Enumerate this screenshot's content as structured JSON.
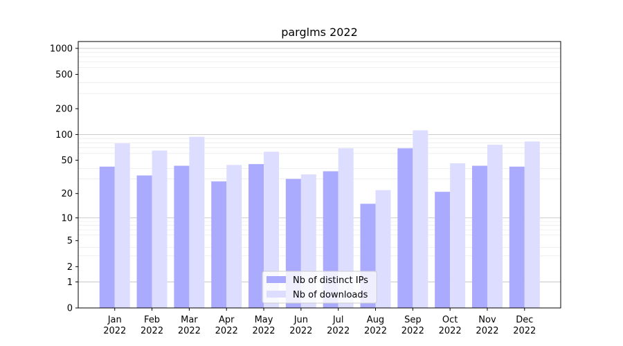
{
  "chart_data": {
    "type": "bar",
    "title": "parglms 2022",
    "xlabel": "",
    "ylabel": "",
    "y_scale": "symlog",
    "ylim": [
      0,
      1200
    ],
    "y_ticks": [
      0,
      1,
      2,
      5,
      10,
      20,
      50,
      100,
      200,
      500,
      1000
    ],
    "y_tick_labels": [
      "0",
      "1",
      "2",
      "5",
      "10",
      "20",
      "50",
      "100",
      "200",
      "500",
      "1000"
    ],
    "grid": true,
    "legend_position": "bottom-center",
    "categories": [
      "Jan\n2022",
      "Feb\n2022",
      "Mar\n2022",
      "Apr\n2022",
      "May\n2022",
      "Jun\n2022",
      "Jul\n2022",
      "Aug\n2022",
      "Sep\n2022",
      "Oct\n2022",
      "Nov\n2022",
      "Dec\n2022"
    ],
    "category_lines": [
      [
        "Jan",
        "2022"
      ],
      [
        "Feb",
        "2022"
      ],
      [
        "Mar",
        "2022"
      ],
      [
        "Apr",
        "2022"
      ],
      [
        "May",
        "2022"
      ],
      [
        "Jun",
        "2022"
      ],
      [
        "Jul",
        "2022"
      ],
      [
        "Aug",
        "2022"
      ],
      [
        "Sep",
        "2022"
      ],
      [
        "Oct",
        "2022"
      ],
      [
        "Nov",
        "2022"
      ],
      [
        "Dec",
        "2022"
      ]
    ],
    "series": [
      {
        "name": "Nb of distinct IPs",
        "color": "#aaaaff",
        "values": [
          42,
          33,
          43,
          28,
          45,
          30,
          37,
          15,
          69,
          21,
          43,
          42
        ]
      },
      {
        "name": "Nb of downloads",
        "color": "#ddddff",
        "values": [
          79,
          65,
          94,
          44,
          63,
          34,
          69,
          22,
          112,
          46,
          76,
          83
        ]
      }
    ]
  }
}
